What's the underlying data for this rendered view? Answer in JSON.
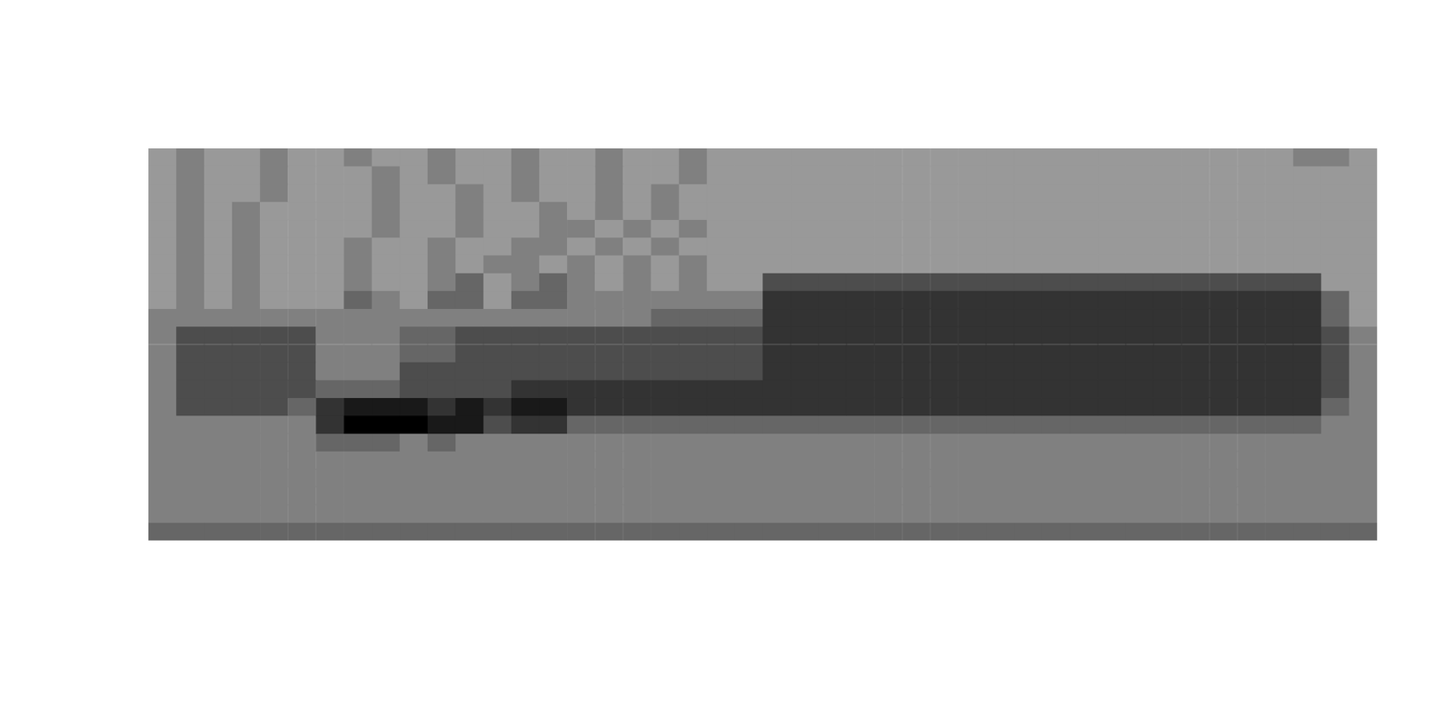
{
  "chart_data": {
    "type": "heatmap",
    "tick_labels": false,
    "grid": false,
    "zlim": [
      0,
      10
    ],
    "cells": [
      [
        4,
        5,
        4,
        4,
        5,
        4,
        4,
        5,
        4,
        4,
        5,
        4,
        4,
        5,
        4,
        4,
        5,
        4,
        4,
        5,
        4,
        4,
        4,
        4,
        4,
        4,
        4,
        4,
        4,
        4,
        4,
        4,
        4,
        4,
        4,
        4,
        4,
        4,
        4,
        4,
        4,
        5,
        5,
        4
      ],
      [
        4,
        5,
        4,
        4,
        5,
        4,
        4,
        4,
        5,
        4,
        5,
        4,
        4,
        5,
        4,
        4,
        5,
        4,
        4,
        5,
        4,
        4,
        4,
        4,
        4,
        4,
        4,
        4,
        4,
        4,
        4,
        4,
        4,
        4,
        4,
        4,
        4,
        4,
        4,
        4,
        4,
        4,
        4,
        4
      ],
      [
        4,
        5,
        4,
        4,
        5,
        4,
        4,
        4,
        5,
        4,
        4,
        5,
        4,
        5,
        4,
        4,
        5,
        4,
        5,
        4,
        4,
        4,
        4,
        4,
        4,
        4,
        4,
        4,
        4,
        4,
        4,
        4,
        4,
        4,
        4,
        4,
        4,
        4,
        4,
        4,
        4,
        4,
        4,
        4
      ],
      [
        4,
        5,
        4,
        5,
        4,
        4,
        4,
        4,
        5,
        4,
        4,
        5,
        4,
        4,
        5,
        4,
        5,
        4,
        5,
        4,
        4,
        4,
        4,
        4,
        4,
        4,
        4,
        4,
        4,
        4,
        4,
        4,
        4,
        4,
        4,
        4,
        4,
        4,
        4,
        4,
        4,
        4,
        4,
        4
      ],
      [
        4,
        5,
        4,
        5,
        4,
        4,
        4,
        4,
        5,
        4,
        4,
        5,
        4,
        4,
        5,
        5,
        4,
        5,
        4,
        5,
        4,
        4,
        4,
        4,
        4,
        4,
        4,
        4,
        4,
        4,
        4,
        4,
        4,
        4,
        4,
        4,
        4,
        4,
        4,
        4,
        4,
        4,
        4,
        4
      ],
      [
        4,
        5,
        4,
        5,
        4,
        4,
        4,
        5,
        4,
        4,
        5,
        4,
        4,
        5,
        5,
        4,
        5,
        4,
        5,
        4,
        4,
        4,
        4,
        4,
        4,
        4,
        4,
        4,
        4,
        4,
        4,
        4,
        4,
        4,
        4,
        4,
        4,
        4,
        4,
        4,
        4,
        4,
        4,
        4
      ],
      [
        4,
        5,
        4,
        5,
        4,
        4,
        4,
        5,
        4,
        4,
        5,
        4,
        5,
        5,
        4,
        5,
        4,
        5,
        4,
        5,
        4,
        4,
        4,
        4,
        4,
        4,
        4,
        4,
        4,
        4,
        4,
        4,
        4,
        4,
        4,
        4,
        4,
        4,
        4,
        4,
        4,
        4,
        4,
        4
      ],
      [
        4,
        5,
        4,
        5,
        4,
        4,
        4,
        5,
        4,
        4,
        5,
        6,
        4,
        5,
        6,
        5,
        4,
        5,
        4,
        5,
        4,
        4,
        7,
        7,
        7,
        7,
        7,
        7,
        7,
        7,
        7,
        7,
        7,
        7,
        7,
        7,
        7,
        7,
        7,
        7,
        7,
        7,
        4,
        4
      ],
      [
        4,
        5,
        4,
        5,
        4,
        4,
        4,
        6,
        5,
        4,
        6,
        6,
        4,
        6,
        6,
        5,
        5,
        5,
        5,
        5,
        5,
        5,
        8,
        8,
        8,
        8,
        8,
        8,
        8,
        8,
        8,
        8,
        8,
        8,
        8,
        8,
        8,
        8,
        8,
        8,
        8,
        8,
        6,
        4
      ],
      [
        5,
        5,
        5,
        5,
        5,
        5,
        5,
        5,
        5,
        5,
        5,
        5,
        5,
        5,
        5,
        5,
        5,
        5,
        6,
        6,
        6,
        6,
        8,
        8,
        8,
        8,
        8,
        8,
        8,
        8,
        8,
        8,
        8,
        8,
        8,
        8,
        8,
        8,
        8,
        8,
        8,
        8,
        6,
        4
      ],
      [
        5,
        7,
        7,
        7,
        7,
        7,
        5,
        5,
        5,
        6,
        6,
        7,
        7,
        7,
        7,
        7,
        7,
        7,
        7,
        7,
        7,
        7,
        8,
        8,
        8,
        8,
        8,
        8,
        8,
        8,
        8,
        8,
        8,
        8,
        8,
        8,
        8,
        8,
        8,
        8,
        8,
        8,
        7,
        5
      ],
      [
        5,
        7,
        7,
        7,
        7,
        7,
        5,
        5,
        5,
        6,
        6,
        7,
        7,
        7,
        7,
        7,
        7,
        7,
        7,
        7,
        7,
        7,
        8,
        8,
        8,
        8,
        8,
        8,
        8,
        8,
        8,
        8,
        8,
        8,
        8,
        8,
        8,
        8,
        8,
        8,
        8,
        8,
        7,
        5
      ],
      [
        5,
        7,
        7,
        7,
        7,
        7,
        5,
        5,
        5,
        7,
        7,
        7,
        7,
        7,
        7,
        7,
        7,
        7,
        7,
        7,
        7,
        7,
        8,
        8,
        8,
        8,
        8,
        8,
        8,
        8,
        8,
        8,
        8,
        8,
        8,
        8,
        8,
        8,
        8,
        8,
        8,
        8,
        7,
        5
      ],
      [
        5,
        7,
        7,
        7,
        7,
        7,
        6,
        6,
        6,
        7,
        7,
        7,
        7,
        8,
        8,
        8,
        8,
        8,
        8,
        8,
        8,
        8,
        8,
        8,
        8,
        8,
        8,
        8,
        8,
        8,
        8,
        8,
        8,
        8,
        8,
        8,
        8,
        8,
        8,
        8,
        8,
        8,
        7,
        5
      ],
      [
        5,
        7,
        7,
        7,
        7,
        6,
        8,
        9,
        9,
        9,
        8,
        9,
        8,
        9,
        9,
        8,
        8,
        8,
        8,
        8,
        8,
        8,
        8,
        8,
        8,
        8,
        8,
        8,
        8,
        8,
        8,
        8,
        8,
        8,
        8,
        8,
        8,
        8,
        8,
        8,
        8,
        8,
        6,
        5
      ],
      [
        5,
        5,
        5,
        5,
        5,
        5,
        8,
        10,
        10,
        10,
        9,
        9,
        7,
        8,
        8,
        6,
        6,
        6,
        6,
        6,
        6,
        6,
        6,
        6,
        6,
        6,
        6,
        6,
        6,
        6,
        6,
        6,
        6,
        6,
        6,
        6,
        6,
        6,
        6,
        6,
        6,
        6,
        5,
        5
      ],
      [
        5,
        5,
        5,
        5,
        5,
        5,
        6,
        6,
        6,
        5,
        6,
        5,
        5,
        5,
        5,
        5,
        5,
        5,
        5,
        5,
        5,
        5,
        5,
        5,
        5,
        5,
        5,
        5,
        5,
        5,
        5,
        5,
        5,
        5,
        5,
        5,
        5,
        5,
        5,
        5,
        5,
        5,
        5,
        5
      ],
      [
        5,
        5,
        5,
        5,
        5,
        5,
        5,
        5,
        5,
        5,
        5,
        5,
        5,
        5,
        5,
        5,
        5,
        5,
        5,
        5,
        5,
        5,
        5,
        5,
        5,
        5,
        5,
        5,
        5,
        5,
        5,
        5,
        5,
        5,
        5,
        5,
        5,
        5,
        5,
        5,
        5,
        5,
        5,
        5
      ],
      [
        5,
        5,
        5,
        5,
        5,
        5,
        5,
        5,
        5,
        5,
        5,
        5,
        5,
        5,
        5,
        5,
        5,
        5,
        5,
        5,
        5,
        5,
        5,
        5,
        5,
        5,
        5,
        5,
        5,
        5,
        5,
        5,
        5,
        5,
        5,
        5,
        5,
        5,
        5,
        5,
        5,
        5,
        5,
        5
      ],
      [
        5,
        5,
        5,
        5,
        5,
        5,
        5,
        5,
        5,
        5,
        5,
        5,
        5,
        5,
        5,
        5,
        5,
        5,
        5,
        5,
        5,
        5,
        5,
        5,
        5,
        5,
        5,
        5,
        5,
        5,
        5,
        5,
        5,
        5,
        5,
        5,
        5,
        5,
        5,
        5,
        5,
        5,
        5,
        5
      ],
      [
        5,
        5,
        5,
        5,
        5,
        5,
        5,
        5,
        5,
        5,
        5,
        5,
        5,
        5,
        5,
        5,
        5,
        5,
        5,
        5,
        5,
        5,
        5,
        5,
        5,
        5,
        5,
        5,
        5,
        5,
        5,
        5,
        5,
        5,
        5,
        5,
        5,
        5,
        5,
        5,
        5,
        5,
        5,
        5
      ],
      [
        6,
        6,
        6,
        6,
        6,
        6,
        6,
        6,
        6,
        6,
        6,
        6,
        6,
        6,
        6,
        6,
        6,
        6,
        6,
        6,
        6,
        6,
        6,
        6,
        6,
        6,
        6,
        6,
        6,
        6,
        6,
        6,
        6,
        6,
        6,
        6,
        6,
        6,
        6,
        6,
        6,
        6,
        6,
        6
      ]
    ]
  }
}
